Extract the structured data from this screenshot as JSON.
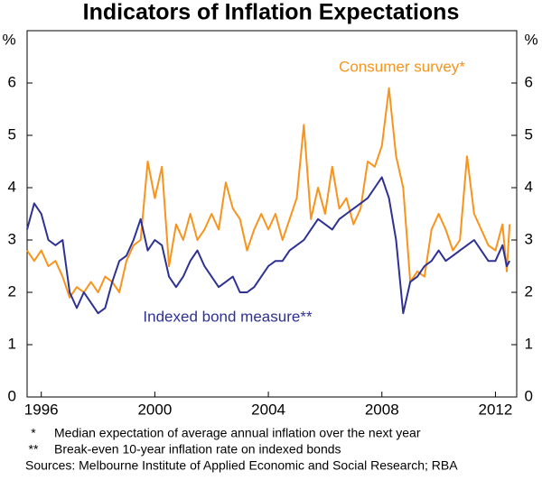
{
  "chart_data": {
    "type": "line",
    "title": "Indicators of Inflation Expectations",
    "ylabel": "%",
    "y2label": "%",
    "x": [
      1995.5,
      1995.75,
      1996,
      1996.25,
      1996.5,
      1996.75,
      1997,
      1997.25,
      1997.5,
      1997.75,
      1998,
      1998.25,
      1998.5,
      1998.75,
      1999,
      1999.25,
      1999.5,
      1999.75,
      2000,
      2000.25,
      2000.5,
      2000.75,
      2001,
      2001.25,
      2001.5,
      2001.75,
      2002,
      2002.25,
      2002.5,
      2002.75,
      2003,
      2003.25,
      2003.5,
      2003.75,
      2004,
      2004.25,
      2004.5,
      2004.75,
      2005,
      2005.25,
      2005.5,
      2005.75,
      2006,
      2006.25,
      2006.5,
      2006.75,
      2007,
      2007.25,
      2007.5,
      2007.75,
      2008,
      2008.25,
      2008.5,
      2008.75,
      2009,
      2009.25,
      2009.5,
      2009.75,
      2010,
      2010.25,
      2010.5,
      2010.75,
      2011,
      2011.25,
      2011.5,
      2011.75,
      2012,
      2012.25,
      2012.4,
      2012.5
    ],
    "series": [
      {
        "name": "Consumer survey*",
        "color": "#f7941d",
        "values": [
          2.8,
          2.6,
          2.8,
          2.5,
          2.6,
          2.3,
          1.9,
          2.1,
          2.0,
          2.2,
          2.0,
          2.3,
          2.2,
          2.0,
          2.6,
          2.9,
          3.0,
          4.5,
          3.8,
          4.4,
          2.5,
          3.3,
          3.0,
          3.5,
          3.0,
          3.2,
          3.5,
          3.2,
          4.1,
          3.6,
          3.4,
          2.8,
          3.2,
          3.5,
          3.2,
          3.5,
          3.0,
          3.4,
          3.8,
          5.2,
          3.4,
          4.0,
          3.5,
          4.4,
          3.6,
          3.8,
          3.3,
          3.6,
          4.5,
          4.4,
          4.8,
          5.9,
          4.6,
          4.0,
          2.2,
          2.4,
          2.3,
          3.2,
          3.5,
          3.2,
          2.8,
          3.0,
          4.6,
          3.5,
          3.2,
          2.9,
          2.8,
          3.3,
          2.4,
          3.3
        ]
      },
      {
        "name": "Indexed bond measure**",
        "color": "#2e3192",
        "values": [
          3.2,
          3.7,
          3.5,
          3.0,
          2.9,
          3.0,
          2.0,
          1.7,
          2.0,
          1.8,
          1.6,
          1.7,
          2.2,
          2.6,
          2.7,
          3.0,
          3.4,
          2.8,
          3.0,
          2.9,
          2.3,
          2.1,
          2.3,
          2.6,
          2.8,
          2.5,
          2.3,
          2.1,
          2.2,
          2.3,
          2.0,
          2.0,
          2.1,
          2.3,
          2.5,
          2.6,
          2.6,
          2.8,
          2.9,
          3.0,
          3.2,
          3.4,
          3.3,
          3.2,
          3.4,
          3.5,
          3.6,
          3.7,
          3.8,
          4.0,
          4.2,
          3.8,
          3.0,
          1.6,
          2.2,
          2.3,
          2.5,
          2.6,
          2.8,
          2.6,
          2.7,
          2.8,
          2.9,
          3.0,
          2.8,
          2.6,
          2.6,
          2.9,
          2.5,
          2.6
        ]
      }
    ],
    "xlim": [
      1995.5,
      2012.75
    ],
    "xticks": [
      1996,
      2000,
      2004,
      2008,
      2012
    ],
    "ylim": [
      0,
      7
    ],
    "yticks": [
      0,
      1,
      2,
      3,
      4,
      5,
      6
    ],
    "y2lim": [
      0,
      7
    ],
    "y2ticks": [
      0,
      1,
      2,
      3,
      4,
      5,
      6
    ],
    "notes": [
      "*",
      "Median expectation of average annual inflation over the next year",
      "**",
      "Break-even 10-year inflation rate on indexed bonds"
    ],
    "source": "Sources: Melbourne Institute of Applied Economic and Social Research; RBA"
  }
}
